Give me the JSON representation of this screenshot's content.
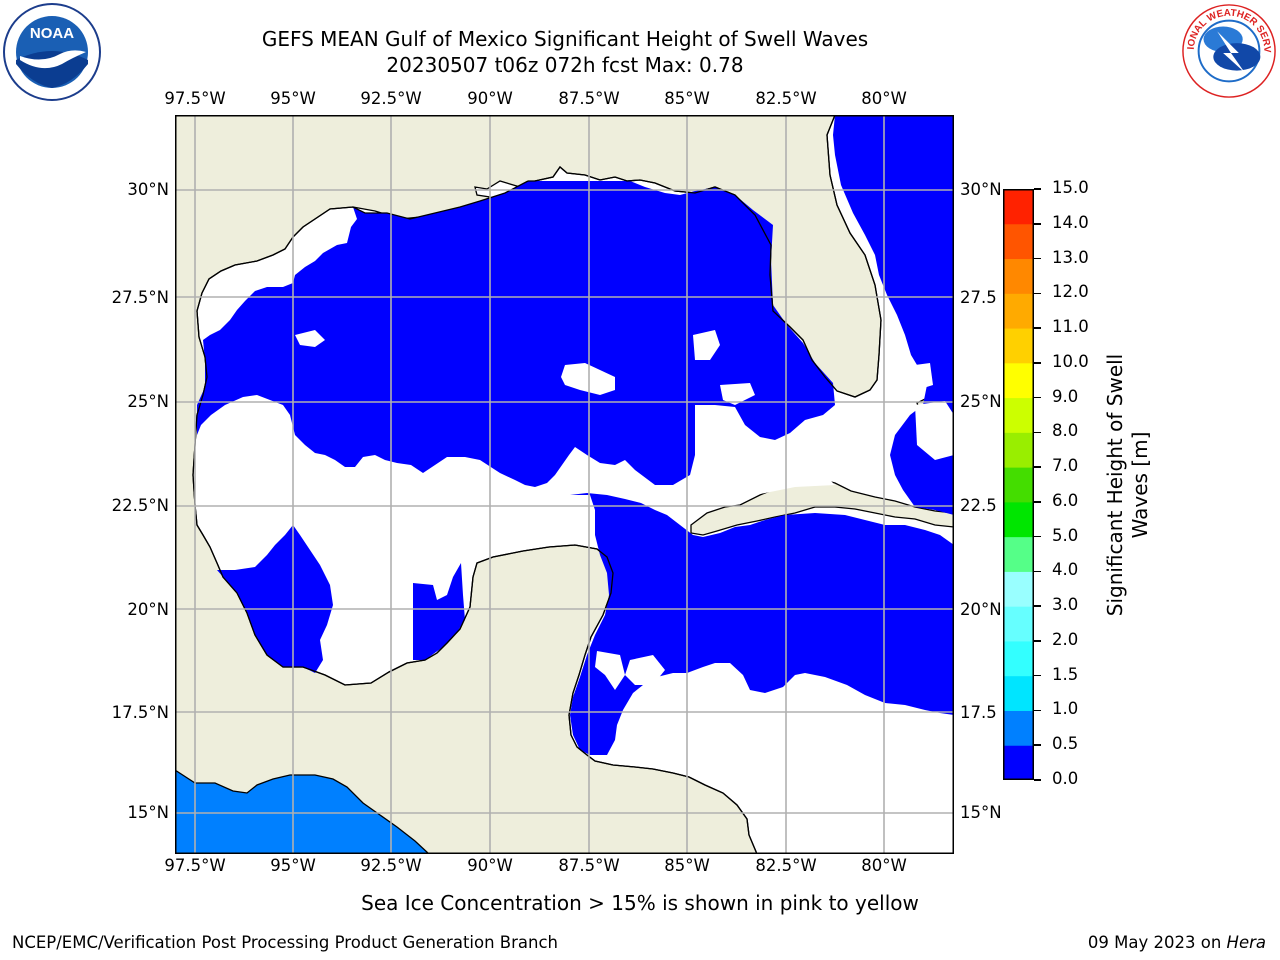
{
  "title_line1": "GEFS MEAN Gulf of Mexico Significant Height of Swell Waves",
  "title_line2": "20230507 t06z 072h fcst   Max: 0.78",
  "lon_labels": [
    "97.5°W",
    "95°W",
    "92.5°W",
    "90°W",
    "87.5°W",
    "85°W",
    "82.5°W",
    "80°W"
  ],
  "lat_labels_left": [
    "30°N",
    "27.5°N",
    "25°N",
    "22.5°N",
    "20°N",
    "17.5°N",
    "15°N"
  ],
  "lat_labels_right": [
    "30°N",
    "27.5",
    "25°N",
    "22.5",
    "20°N",
    "17.5",
    "15°N"
  ],
  "colorbar": {
    "title_line1": "Significant Height of Swell",
    "title_line2": "Waves [m]",
    "tick_labels": [
      "0.0",
      "0.5",
      "1.0",
      "1.5",
      "2.0",
      "3.0",
      "4.0",
      "5.0",
      "6.0",
      "7.0",
      "8.0",
      "9.0",
      "10.0",
      "11.0",
      "12.0",
      "13.0",
      "14.0",
      "15.0"
    ],
    "colors": [
      "#0000ff",
      "#0080ff",
      "#00e5ff",
      "#33ffff",
      "#66ffff",
      "#99ffff",
      "#55ff88",
      "#00e600",
      "#44dd00",
      "#99ee00",
      "#ccff00",
      "#ffff00",
      "#ffd000",
      "#ffaa00",
      "#ff8800",
      "#ff5500",
      "#ff2200",
      "#ff0000"
    ]
  },
  "land_color": "#eeeedc",
  "sea_ice_note": "Sea Ice Concentration > 15% is shown in pink to yellow",
  "credit": "NCEP/EMC/Verification Post Processing Product Generation Branch",
  "date_text": "09 May 2023 on ",
  "host_text": "Hera",
  "logos": {
    "left": "NOAA",
    "right": "NATIONAL WEATHER SERVICE"
  }
}
